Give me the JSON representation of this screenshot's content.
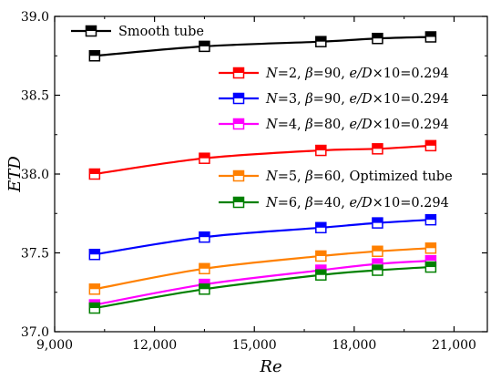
{
  "chart_data": {
    "type": "line",
    "xlabel": "Re",
    "ylabel": "ETD",
    "xlim": [
      9000,
      22000
    ],
    "ylim": [
      37.0,
      39.0
    ],
    "xticks": [
      "9,000",
      "12,000",
      "15,000",
      "18,000",
      "21,000"
    ],
    "xtick_values": [
      9000,
      12000,
      15000,
      18000,
      21000
    ],
    "yticks": [
      "37.0",
      "37.5",
      "38.0",
      "38.5",
      "39.0"
    ],
    "ytick_values": [
      37.0,
      37.5,
      38.0,
      38.5,
      39.0
    ],
    "x": [
      10200,
      13500,
      17000,
      18700,
      20300
    ],
    "grid": false,
    "legend_position": "top-right",
    "series": [
      {
        "name": "Smooth tube",
        "legend_parts": [
          {
            "t": "Smooth tube",
            "i": false
          }
        ],
        "color": "#000000",
        "values": [
          38.75,
          38.81,
          38.84,
          38.86,
          38.87
        ]
      },
      {
        "name": "N=2, β=90, e/D×10=0.294",
        "legend_parts": [
          {
            "t": "N",
            "i": true
          },
          {
            "t": "=2, ",
            "i": false
          },
          {
            "t": "β",
            "i": true
          },
          {
            "t": "=90, ",
            "i": false
          },
          {
            "t": "e/D",
            "i": true
          },
          {
            "t": "×10=0.294",
            "i": false
          }
        ],
        "color": "#ff0000",
        "values": [
          38.0,
          38.1,
          38.15,
          38.16,
          38.18
        ]
      },
      {
        "name": "N=3, β=90, e/D×10=0.294",
        "legend_parts": [
          {
            "t": "N",
            "i": true
          },
          {
            "t": "=3, ",
            "i": false
          },
          {
            "t": "β",
            "i": true
          },
          {
            "t": "=90, ",
            "i": false
          },
          {
            "t": "e/D",
            "i": true
          },
          {
            "t": "×10=0.294",
            "i": false
          }
        ],
        "color": "#0000ff",
        "values": [
          37.49,
          37.6,
          37.66,
          37.69,
          37.71
        ]
      },
      {
        "name": "N=4, β=80, e/D×10=0.294",
        "legend_parts": [
          {
            "t": "N",
            "i": true
          },
          {
            "t": "=4, ",
            "i": false
          },
          {
            "t": "β",
            "i": true
          },
          {
            "t": "=80, ",
            "i": false
          },
          {
            "t": "e/D",
            "i": true
          },
          {
            "t": "×10=0.294",
            "i": false
          }
        ],
        "color": "#ff00ff",
        "values": [
          37.17,
          37.3,
          37.39,
          37.43,
          37.45
        ]
      },
      {
        "name": "N=5, β=60, Optimized tube",
        "legend_parts": [
          {
            "t": "N",
            "i": true
          },
          {
            "t": "=5, ",
            "i": false
          },
          {
            "t": "β",
            "i": true
          },
          {
            "t": "=60, Optimized tube",
            "i": false
          }
        ],
        "color": "#ff8000",
        "values": [
          37.27,
          37.4,
          37.48,
          37.51,
          37.53
        ]
      },
      {
        "name": "N=6, β=40, e/D×10=0.294",
        "legend_parts": [
          {
            "t": "N",
            "i": true
          },
          {
            "t": "=6, ",
            "i": false
          },
          {
            "t": "β",
            "i": true
          },
          {
            "t": "=40, ",
            "i": false
          },
          {
            "t": "e/D",
            "i": true
          },
          {
            "t": "×10=0.294",
            "i": false
          }
        ],
        "color": "#008000",
        "values": [
          37.15,
          37.27,
          37.36,
          37.39,
          37.41
        ]
      }
    ]
  }
}
